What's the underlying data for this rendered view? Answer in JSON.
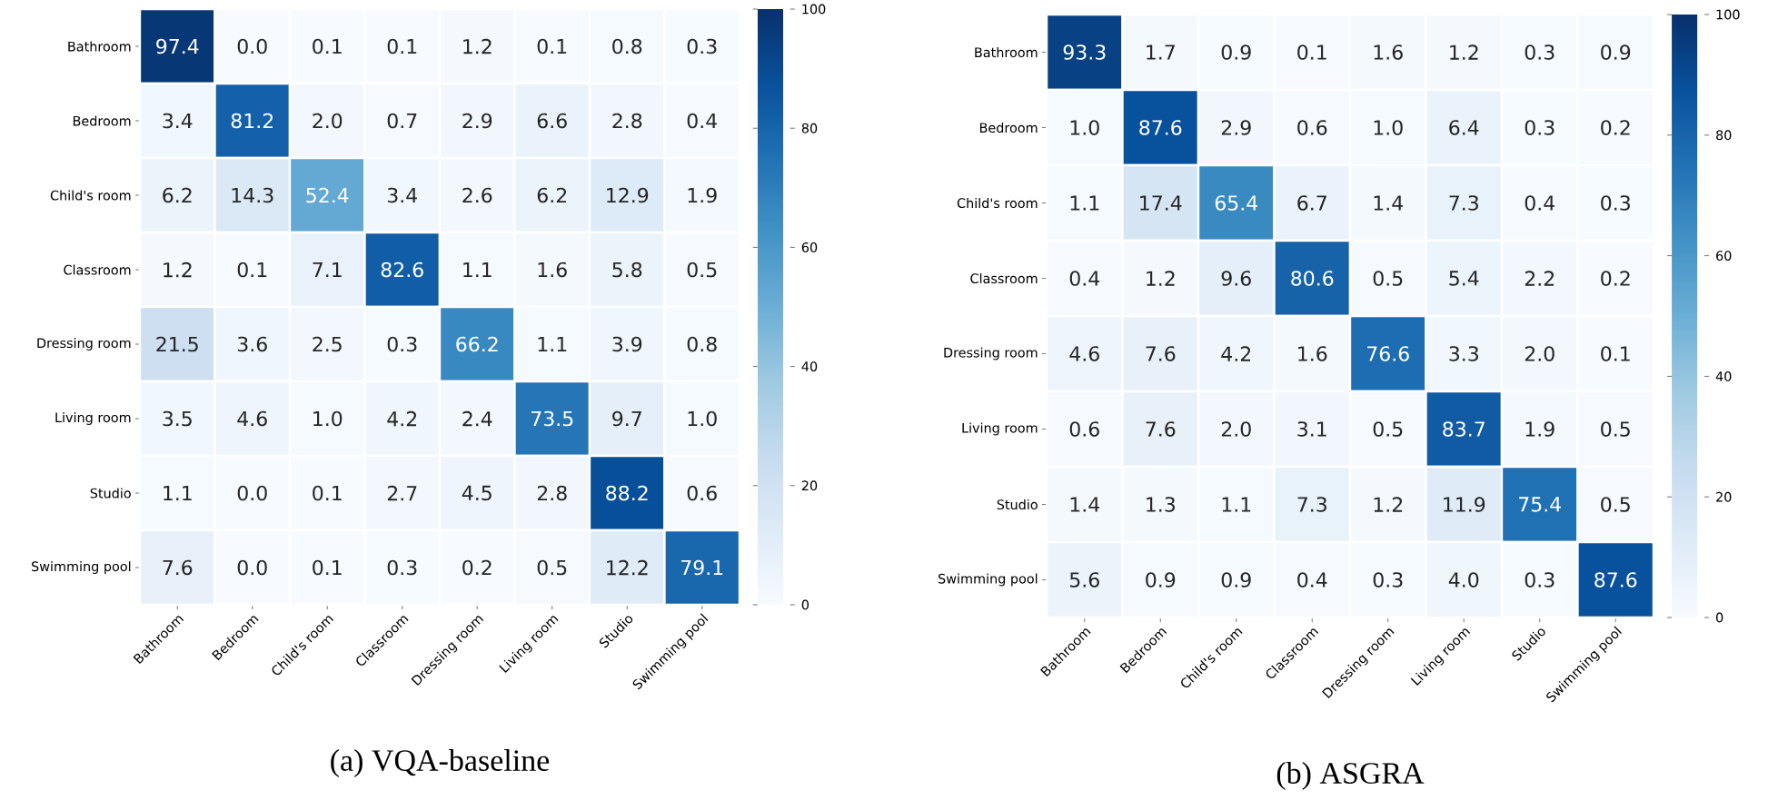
{
  "chart_data": [
    {
      "type": "heatmap",
      "title": "(a) VQA-baseline",
      "categories": [
        "Bathroom",
        "Bedroom",
        "Child's room",
        "Classroom",
        "Dressing room",
        "Living room",
        "Studio",
        "Swimming pool"
      ],
      "y_categories": [
        "Bathroom",
        "Bedroom",
        "Child's room",
        "Classroom",
        "Dressing room",
        "Living room",
        "Studio",
        "Swimming pool"
      ],
      "cells": [
        [
          97.4,
          0.0,
          0.1,
          0.1,
          1.2,
          0.1,
          0.8,
          0.3
        ],
        [
          3.4,
          81.2,
          2.0,
          0.7,
          2.9,
          6.6,
          2.8,
          0.4
        ],
        [
          6.2,
          14.3,
          52.4,
          3.4,
          2.6,
          6.2,
          12.9,
          1.9
        ],
        [
          1.2,
          0.1,
          7.1,
          82.6,
          1.1,
          1.6,
          5.8,
          0.5
        ],
        [
          21.5,
          3.6,
          2.5,
          0.3,
          66.2,
          1.1,
          3.9,
          0.8
        ],
        [
          3.5,
          4.6,
          1.0,
          4.2,
          2.4,
          73.5,
          9.7,
          1.0
        ],
        [
          1.1,
          0.0,
          0.1,
          2.7,
          4.5,
          2.8,
          88.2,
          0.6
        ],
        [
          7.6,
          0.0,
          0.1,
          0.3,
          0.2,
          0.5,
          12.2,
          79.1
        ]
      ],
      "cell_labels": [
        [
          "97.4",
          "0.0",
          "0.1",
          "0.1",
          "1.2",
          "0.1",
          "0.8",
          "0.3"
        ],
        [
          "3.4",
          "81.2",
          "2.0",
          "0.7",
          "2.9",
          "6.6",
          "2.8",
          "0.4"
        ],
        [
          "6.2",
          "14.3",
          "52.4",
          "3.4",
          "2.6",
          "6.2",
          "12.9",
          "1.9"
        ],
        [
          "1.2",
          "0.1",
          "7.1",
          "82.6",
          "1.1",
          "1.6",
          "5.8",
          "0.5"
        ],
        [
          "21.5",
          "3.6",
          "2.5",
          "0.3",
          "66.2",
          "1.1",
          "3.9",
          "0.8"
        ],
        [
          "3.5",
          "4.6",
          "1.0",
          "4.2",
          "2.4",
          "73.5",
          "9.7",
          "1.0"
        ],
        [
          "1.1",
          "0.0",
          "0.1",
          "2.7",
          "4.5",
          "2.8",
          "88.2",
          "0.6"
        ],
        [
          "7.6",
          "0.0",
          "0.1",
          "0.3",
          "0.2",
          "0.5",
          "12.2",
          "79.1"
        ]
      ],
      "clim": [
        0,
        100
      ],
      "cticks": [
        0,
        20,
        40,
        60,
        80,
        100
      ]
    },
    {
      "type": "heatmap",
      "title": "(b) ASGRA",
      "categories": [
        "Bathroom",
        "Bedroom",
        "Child's room",
        "Classroom",
        "Dressing room",
        "Living room",
        "Studio",
        "Swimming pool"
      ],
      "y_categories": [
        "Bathroom",
        "Bedroom",
        "Child's room",
        "Classroom",
        "Dressing room",
        "Living room",
        "Studio",
        "Swimming pool"
      ],
      "cells": [
        [
          93.3,
          1.7,
          0.9,
          0.1,
          1.6,
          1.2,
          0.3,
          0.9
        ],
        [
          1.0,
          87.6,
          2.9,
          0.6,
          1.0,
          6.4,
          0.3,
          0.2
        ],
        [
          1.1,
          17.4,
          65.4,
          6.7,
          1.4,
          7.3,
          0.4,
          0.3
        ],
        [
          0.4,
          1.2,
          9.6,
          80.6,
          0.5,
          5.4,
          2.2,
          0.2
        ],
        [
          4.6,
          7.6,
          4.2,
          1.6,
          76.6,
          3.3,
          2.0,
          0.1
        ],
        [
          0.6,
          7.6,
          2.0,
          3.1,
          0.5,
          83.7,
          1.9,
          0.5
        ],
        [
          1.4,
          1.3,
          1.1,
          7.3,
          1.2,
          11.9,
          75.4,
          0.5
        ],
        [
          5.6,
          0.9,
          0.9,
          0.4,
          0.3,
          4.0,
          0.3,
          87.6
        ]
      ],
      "cell_labels": [
        [
          "93.3",
          "1.7",
          "0.9",
          "0.1",
          "1.6",
          "1.2",
          "0.3",
          "0.9"
        ],
        [
          "1.0",
          "87.6",
          "2.9",
          "0.6",
          "1.0",
          "6.4",
          "0.3",
          "0.2"
        ],
        [
          "1.1",
          "17.4",
          "65.4",
          "6.7",
          "1.4",
          "7.3",
          "0.4",
          "0.3"
        ],
        [
          "0.4",
          "1.2",
          "9.6",
          "80.6",
          "0.5",
          "5.4",
          "2.2",
          "0.2"
        ],
        [
          "4.6",
          "7.6",
          "4.2",
          "1.6",
          "76.6",
          "3.3",
          "2.0",
          "0.1"
        ],
        [
          "0.6",
          "7.6",
          "2.0",
          "3.1",
          "0.5",
          "83.7",
          "1.9",
          "0.5"
        ],
        [
          "1.4",
          "1.3",
          "1.1",
          "7.3",
          "1.2",
          "11.9",
          "75.4",
          "0.5"
        ],
        [
          "5.6",
          "0.9",
          "0.9",
          "0.4",
          "0.3",
          "4.0",
          "0.3",
          "87.6"
        ]
      ],
      "clim": [
        0,
        100
      ],
      "cticks": [
        0,
        20,
        40,
        60,
        80,
        100
      ]
    }
  ]
}
